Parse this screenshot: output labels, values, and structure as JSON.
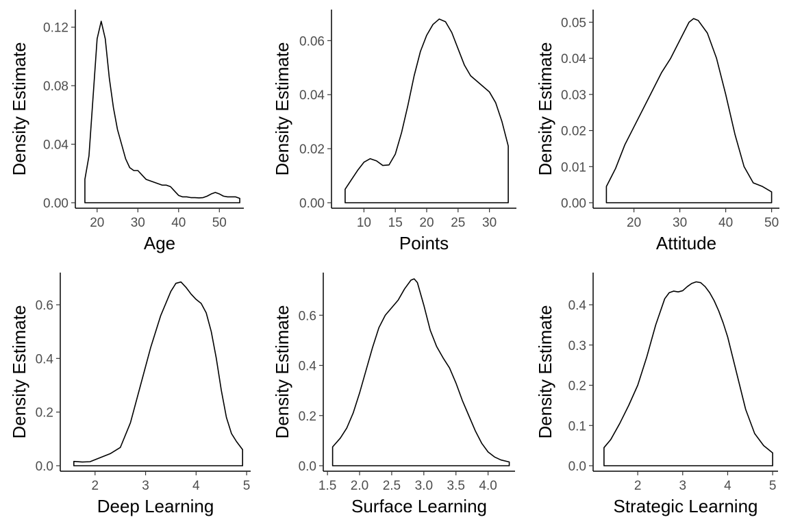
{
  "chart_data": [
    {
      "type": "area",
      "xlabel": "Age",
      "ylabel": "Density Estimate",
      "xlim": [
        16,
        56
      ],
      "ylim": [
        0,
        0.132
      ],
      "xticks": [
        20,
        30,
        40,
        50
      ],
      "yticks": [
        0.0,
        0.04,
        0.08,
        0.12
      ],
      "ytick_labels": [
        "0.00",
        "0.04",
        "0.08",
        "0.12"
      ],
      "series": [
        {
          "x": [
            17,
            18,
            19,
            20,
            21,
            22,
            23,
            24,
            25,
            26,
            27,
            28,
            29,
            30,
            31,
            32,
            33,
            34,
            35,
            36,
            37,
            38,
            39,
            40,
            41,
            42,
            43,
            44,
            45,
            46,
            47,
            48,
            49,
            50,
            51,
            52,
            53,
            54,
            55
          ],
          "y": [
            0.016,
            0.032,
            0.072,
            0.112,
            0.124,
            0.112,
            0.085,
            0.065,
            0.05,
            0.04,
            0.03,
            0.024,
            0.022,
            0.022,
            0.019,
            0.016,
            0.015,
            0.014,
            0.013,
            0.012,
            0.012,
            0.011,
            0.008,
            0.005,
            0.004,
            0.004,
            0.0035,
            0.0035,
            0.0033,
            0.0035,
            0.0045,
            0.006,
            0.007,
            0.006,
            0.0045,
            0.004,
            0.004,
            0.004,
            0.003
          ]
        }
      ]
    },
    {
      "type": "area",
      "xlabel": "Points",
      "ylabel": "Density Estimate",
      "xlim": [
        5.7,
        34.3
      ],
      "ylim": [
        0,
        0.0715
      ],
      "xticks": [
        10,
        15,
        20,
        25,
        30
      ],
      "yticks": [
        0.0,
        0.02,
        0.04,
        0.06
      ],
      "ytick_labels": [
        "0.00",
        "0.02",
        "0.04",
        "0.06"
      ],
      "series": [
        {
          "x": [
            7,
            8,
            9,
            10,
            11,
            12,
            13,
            14,
            15,
            16,
            17,
            18,
            19,
            20,
            21,
            22,
            23,
            24,
            25,
            26,
            27,
            28,
            29,
            30,
            31,
            32,
            33
          ],
          "y": [
            0.005,
            0.0085,
            0.012,
            0.015,
            0.0163,
            0.0155,
            0.0138,
            0.014,
            0.018,
            0.026,
            0.036,
            0.047,
            0.056,
            0.062,
            0.066,
            0.068,
            0.067,
            0.063,
            0.057,
            0.051,
            0.047,
            0.045,
            0.043,
            0.041,
            0.037,
            0.03,
            0.021
          ]
        }
      ]
    },
    {
      "type": "area",
      "xlabel": "Attitude",
      "ylabel": "Density Estimate",
      "xlim": [
        12.3,
        51.7
      ],
      "ylim": [
        0,
        0.0535
      ],
      "xticks": [
        20,
        30,
        40,
        50
      ],
      "yticks": [
        0.0,
        0.01,
        0.02,
        0.03,
        0.04,
        0.05
      ],
      "ytick_labels": [
        "0.00",
        "0.01",
        "0.02",
        "0.03",
        "0.04",
        "0.05"
      ],
      "series": [
        {
          "x": [
            14,
            16,
            18,
            20,
            22,
            24,
            26,
            28,
            30,
            32,
            33,
            34,
            36,
            38,
            40,
            42,
            44,
            46,
            48,
            50
          ],
          "y": [
            0.0045,
            0.0095,
            0.016,
            0.021,
            0.026,
            0.031,
            0.036,
            0.04,
            0.045,
            0.05,
            0.051,
            0.0505,
            0.047,
            0.04,
            0.03,
            0.019,
            0.01,
            0.0055,
            0.0045,
            0.003
          ]
        }
      ]
    },
    {
      "type": "area",
      "xlabel": "Deep Learning",
      "ylabel": "Density Estimate",
      "xlim": [
        1.42,
        5.08
      ],
      "ylim": [
        0,
        0.72
      ],
      "xticks": [
        2,
        3,
        4,
        5
      ],
      "yticks": [
        0.0,
        0.2,
        0.4,
        0.6
      ],
      "ytick_labels": [
        "0.0",
        "0.2",
        "0.4",
        "0.6"
      ],
      "series": [
        {
          "x": [
            1.58,
            1.75,
            1.9,
            2.1,
            2.3,
            2.5,
            2.7,
            2.9,
            3.1,
            3.3,
            3.5,
            3.6,
            3.7,
            3.8,
            3.9,
            4.0,
            4.1,
            4.2,
            4.3,
            4.4,
            4.5,
            4.6,
            4.7,
            4.8,
            4.92
          ],
          "y": [
            0.016,
            0.014,
            0.015,
            0.03,
            0.045,
            0.068,
            0.16,
            0.3,
            0.44,
            0.56,
            0.65,
            0.68,
            0.685,
            0.665,
            0.64,
            0.62,
            0.605,
            0.57,
            0.5,
            0.4,
            0.28,
            0.18,
            0.12,
            0.09,
            0.06
          ]
        }
      ]
    },
    {
      "type": "area",
      "xlabel": "Surface Learning",
      "ylabel": "Density Estimate",
      "xlim": [
        1.52,
        4.42
      ],
      "ylim": [
        0,
        0.77
      ],
      "xticks": [
        1.5,
        2.0,
        2.5,
        3.0,
        3.5,
        4.0
      ],
      "xtick_labels": [
        "1.5",
        "2.0",
        "2.5",
        "3.0",
        "3.5",
        "4.0"
      ],
      "yticks": [
        0.0,
        0.2,
        0.4,
        0.6
      ],
      "ytick_labels": [
        "0.0",
        "0.2",
        "0.4",
        "0.6"
      ],
      "series": [
        {
          "x": [
            1.58,
            1.7,
            1.8,
            1.9,
            2.0,
            2.1,
            2.2,
            2.3,
            2.4,
            2.5,
            2.6,
            2.7,
            2.8,
            2.85,
            2.9,
            3.0,
            3.1,
            3.2,
            3.3,
            3.4,
            3.5,
            3.6,
            3.7,
            3.8,
            3.9,
            4.0,
            4.1,
            4.2,
            4.33
          ],
          "y": [
            0.075,
            0.11,
            0.15,
            0.21,
            0.29,
            0.38,
            0.47,
            0.55,
            0.6,
            0.63,
            0.66,
            0.705,
            0.74,
            0.745,
            0.73,
            0.64,
            0.54,
            0.475,
            0.43,
            0.39,
            0.33,
            0.26,
            0.2,
            0.14,
            0.09,
            0.055,
            0.035,
            0.023,
            0.015
          ]
        }
      ]
    },
    {
      "type": "area",
      "xlabel": "Strategic Learning",
      "ylabel": "Density Estimate",
      "xlim": [
        1.13,
        5.12
      ],
      "ylim": [
        0,
        0.48
      ],
      "xticks": [
        2,
        3,
        4,
        5
      ],
      "yticks": [
        0.0,
        0.1,
        0.2,
        0.3,
        0.4
      ],
      "ytick_labels": [
        "0.0",
        "0.1",
        "0.2",
        "0.3",
        "0.4"
      ],
      "series": [
        {
          "x": [
            1.25,
            1.4,
            1.6,
            1.8,
            2.0,
            2.2,
            2.4,
            2.6,
            2.7,
            2.8,
            2.9,
            3.0,
            3.1,
            3.2,
            3.3,
            3.4,
            3.5,
            3.6,
            3.7,
            3.8,
            3.9,
            4.0,
            4.2,
            4.4,
            4.6,
            4.8,
            5.0
          ],
          "y": [
            0.045,
            0.065,
            0.105,
            0.15,
            0.2,
            0.27,
            0.35,
            0.415,
            0.43,
            0.434,
            0.432,
            0.435,
            0.445,
            0.453,
            0.457,
            0.455,
            0.445,
            0.43,
            0.41,
            0.385,
            0.355,
            0.32,
            0.23,
            0.14,
            0.08,
            0.05,
            0.032
          ]
        }
      ]
    }
  ]
}
